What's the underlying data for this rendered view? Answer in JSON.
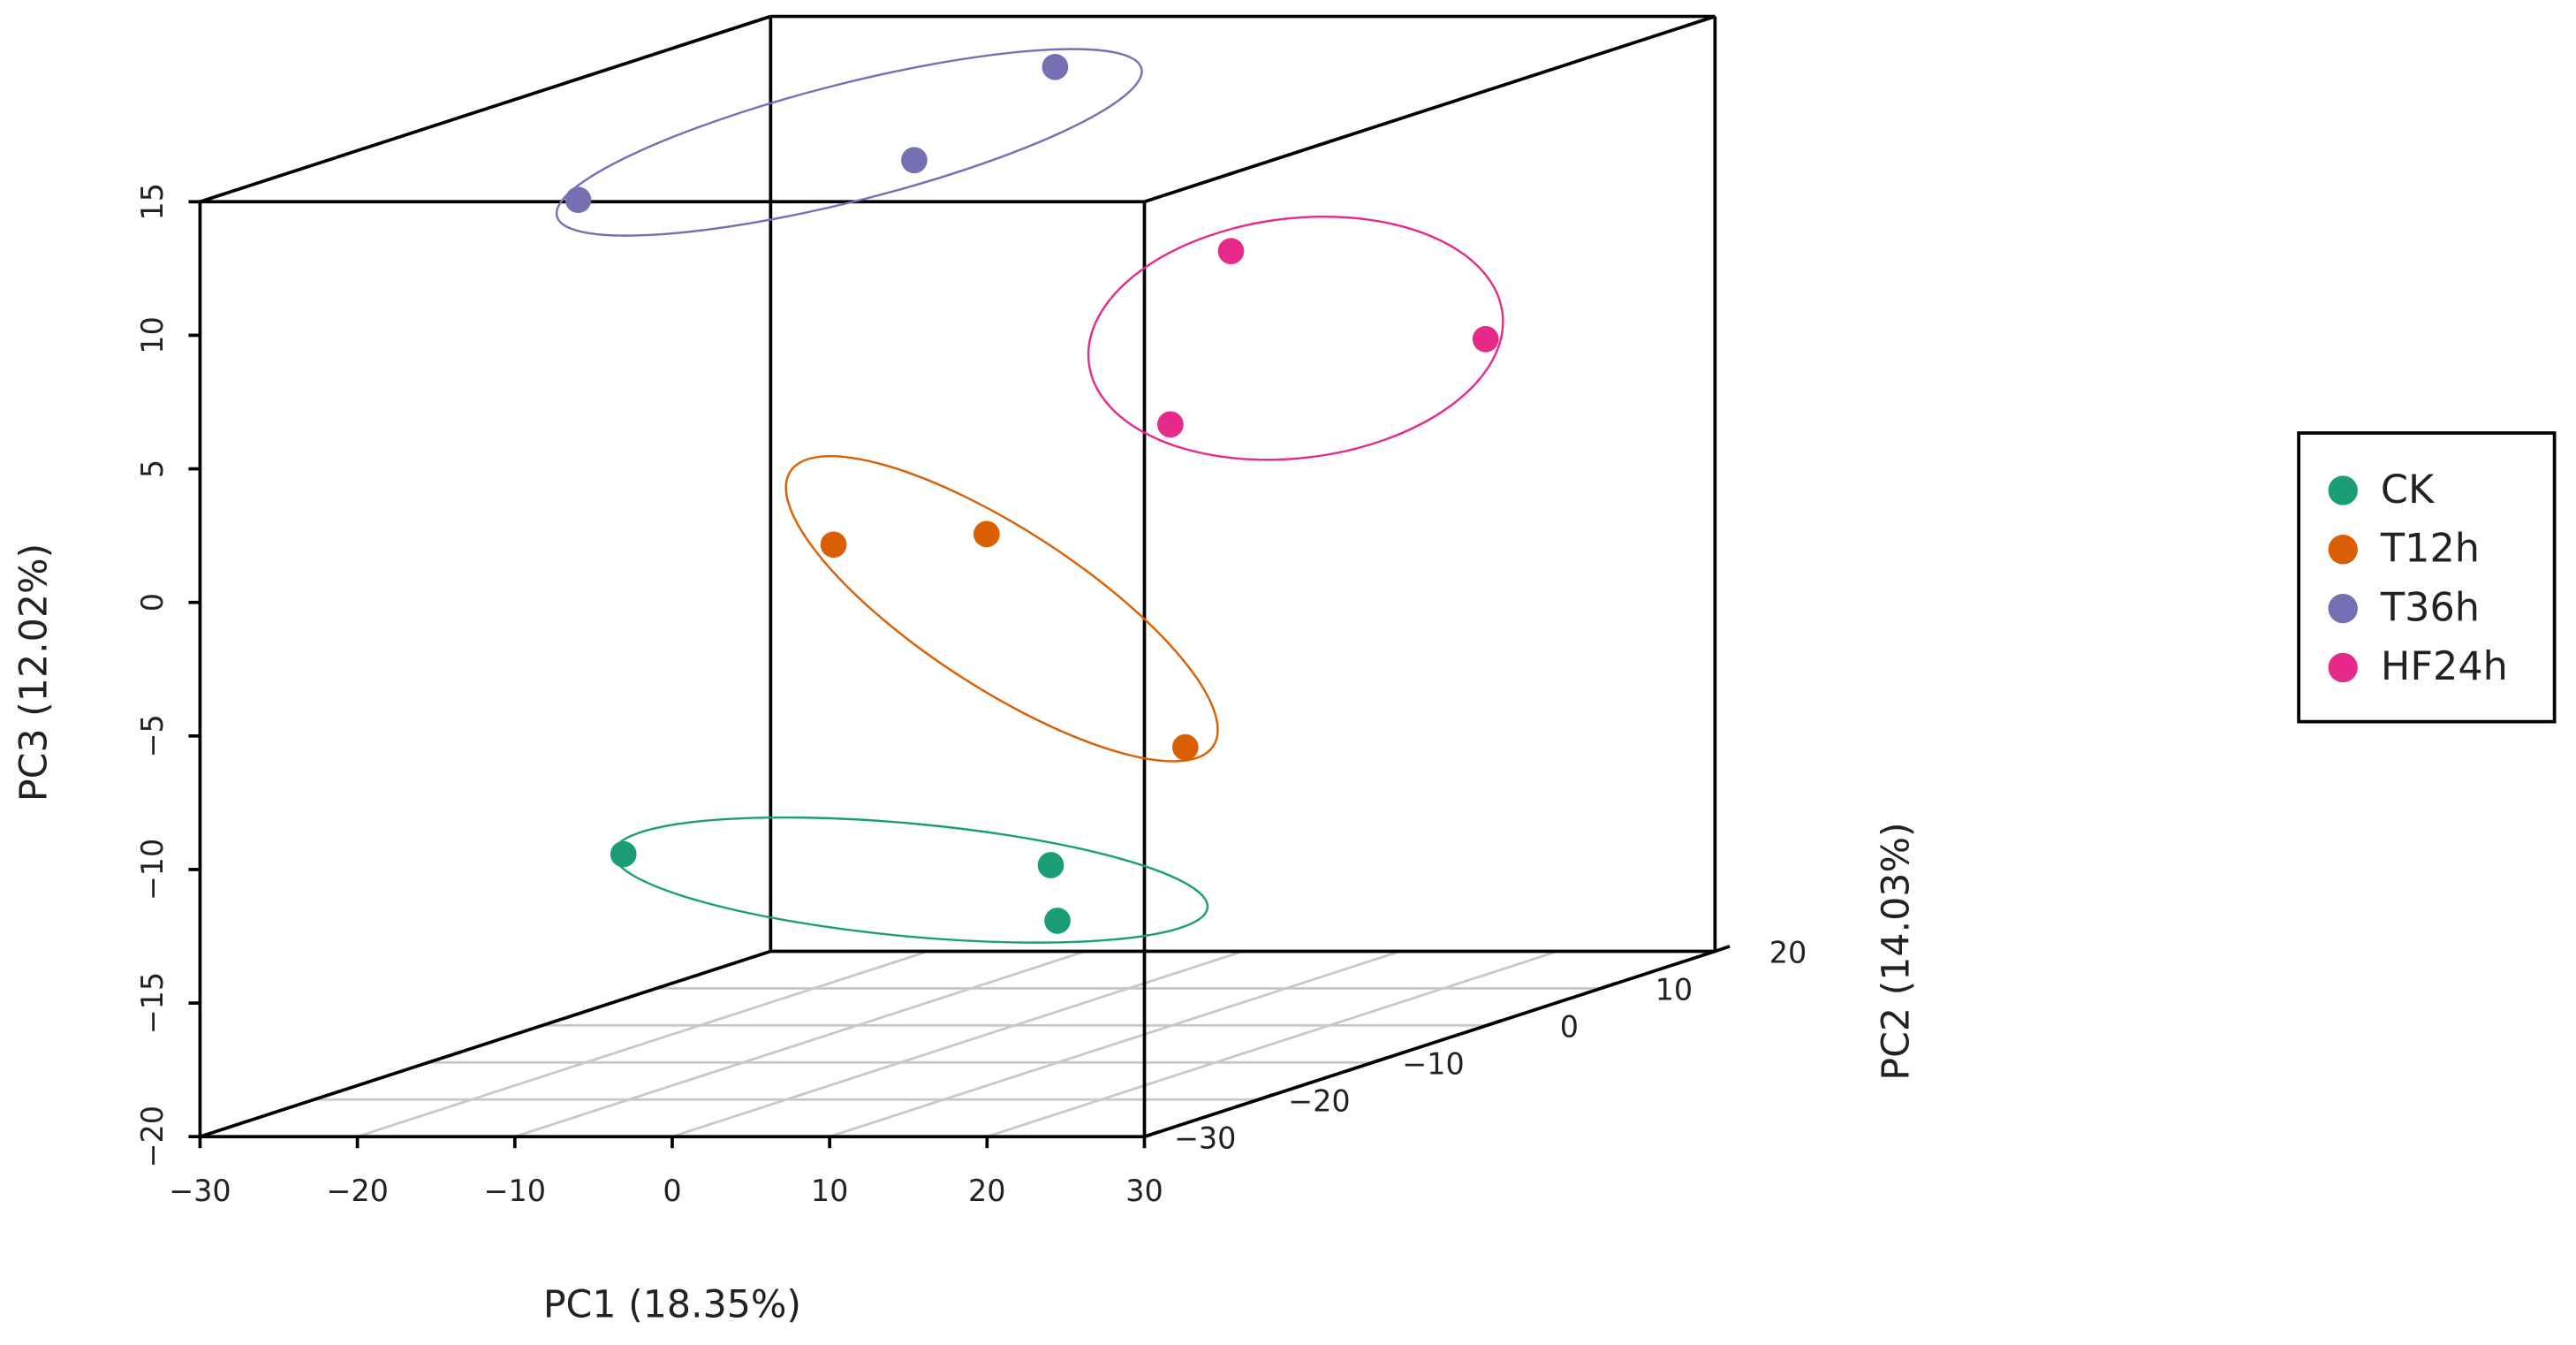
{
  "chart_data": {
    "type": "scatter3d",
    "x_label": "PC1 (18.35%)",
    "y_label": "PC2 (14.03%)",
    "z_label": "PC3 (12.02%)",
    "xlim": [
      -30,
      30
    ],
    "ylim": [
      -30,
      20
    ],
    "zlim": [
      -20,
      15
    ],
    "xticks": [
      {
        "value": -30,
        "label": "−30"
      },
      {
        "value": -20,
        "label": "−20"
      },
      {
        "value": -10,
        "label": "−10"
      },
      0,
      10,
      20,
      30
    ],
    "yticks": [
      {
        "value": -30,
        "label": "−30"
      },
      {
        "value": -20,
        "label": "−20"
      },
      {
        "value": -10,
        "label": "−10"
      },
      0,
      10,
      20
    ],
    "zticks": [
      {
        "value": -20,
        "label": "−20"
      },
      {
        "value": -15,
        "label": "−15"
      },
      {
        "value": -10,
        "label": "−10"
      },
      {
        "value": -5,
        "label": "−5"
      },
      0,
      5,
      10,
      15
    ],
    "grid": true,
    "legend": "right",
    "series": [
      {
        "name": "CK",
        "color": "#1b9e77",
        "x": [
          -17.6,
          2.3,
          13.6
        ],
        "y": [
          -10,
          0,
          -15
        ],
        "z": [
          -12.2,
          -14.0,
          -14.0
        ]
      },
      {
        "name": "T12h",
        "color": "#d95f02",
        "x": [
          -11.5,
          -5.4,
          18.1
        ],
        "y": [
          0,
          5,
          -10
        ],
        "z": [
          -2.0,
          -2.3,
          -8.2
        ]
      },
      {
        "name": "T36h",
        "color": "#7570b3",
        "x": [
          -24.1,
          -10.0,
          -8.3
        ],
        "y": [
          -5,
          5,
          15
        ],
        "z": [
          11.6,
          11.7,
          13.8
        ]
      },
      {
        "name": "HF24h",
        "color": "#e7298a",
        "x": [
          6.5,
          26.3,
          9.9
        ],
        "y": [
          10,
          5,
          0
        ],
        "z": [
          7.6,
          5.0,
          2.5
        ]
      }
    ]
  }
}
